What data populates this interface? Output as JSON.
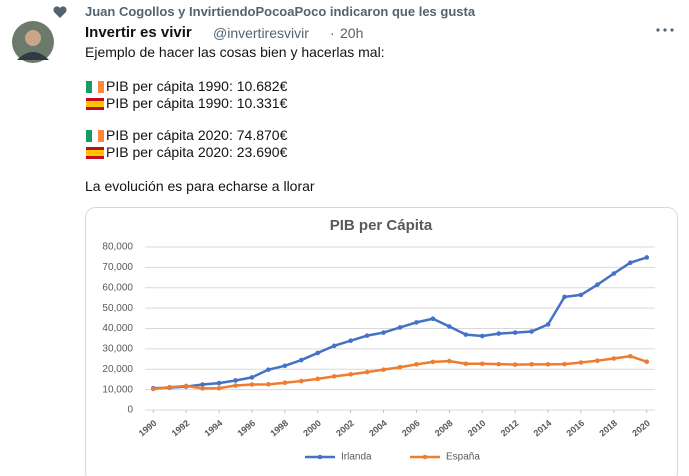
{
  "tweet": {
    "social_context": "Juan Cogollos y InvirtiendoPocoaPoco indicaron que les gusta",
    "author_name": "Invertir es vivir",
    "handle": "@invertiresvivir",
    "separator": "·",
    "time": "20h",
    "lines": [
      "Ejemplo de hacer las cosas bien y hacerlas mal:",
      "PIB per cápita 1990: 10.682€",
      "PIB per cápita 1990: 10.331€",
      "PIB per cápita 2020: 74.870€",
      "PIB per cápita 2020: 23.690€",
      "La evolución es para echarse a llorar"
    ]
  },
  "chart_data": {
    "type": "line",
    "title": "PIB per Cápita",
    "x": [
      1990,
      1991,
      1992,
      1993,
      1994,
      1995,
      1996,
      1997,
      1998,
      1999,
      2000,
      2001,
      2002,
      2003,
      2004,
      2005,
      2006,
      2007,
      2008,
      2009,
      2010,
      2011,
      2012,
      2013,
      2014,
      2015,
      2016,
      2017,
      2018,
      2019,
      2020
    ],
    "xlim": [
      1989.5,
      2020.5
    ],
    "xticks": [
      1990,
      1992,
      1994,
      1996,
      1998,
      2000,
      2002,
      2004,
      2006,
      2008,
      2010,
      2012,
      2014,
      2016,
      2018,
      2020
    ],
    "ylim": [
      0,
      80000
    ],
    "yticks": [
      0,
      {
        "value": 10000,
        "label": "10,000"
      },
      {
        "value": 20000,
        "label": "20,000"
      },
      {
        "value": 30000,
        "label": "30,000"
      },
      {
        "value": 40000,
        "label": "40,000"
      },
      {
        "value": 50000,
        "label": "50,000"
      },
      {
        "value": 60000,
        "label": "60,000"
      },
      {
        "value": 70000,
        "label": "70,000"
      },
      {
        "value": 80000,
        "label": "80,000"
      }
    ],
    "grid": true,
    "legend": "bottom",
    "series": [
      {
        "name": "Irlanda",
        "color": "#4472c4",
        "values": [
          10682,
          11000,
          11500,
          12500,
          13200,
          14500,
          16000,
          19800,
          21700,
          24500,
          28000,
          31500,
          34000,
          36500,
          38000,
          40500,
          43000,
          44800,
          41000,
          37000,
          36300,
          37500,
          38000,
          38500,
          42000,
          55500,
          56500,
          61500,
          67000,
          72300,
          74870
        ]
      },
      {
        "name": "España",
        "color": "#ed7d31",
        "values": [
          10331,
          11200,
          11800,
          10600,
          10700,
          12000,
          12500,
          12600,
          13400,
          14200,
          15300,
          16500,
          17500,
          18600,
          19800,
          21000,
          22400,
          23600,
          24000,
          22700,
          22700,
          22500,
          22300,
          22400,
          22400,
          22500,
          23300,
          24200,
          25300,
          26400,
          23690
        ]
      }
    ]
  }
}
